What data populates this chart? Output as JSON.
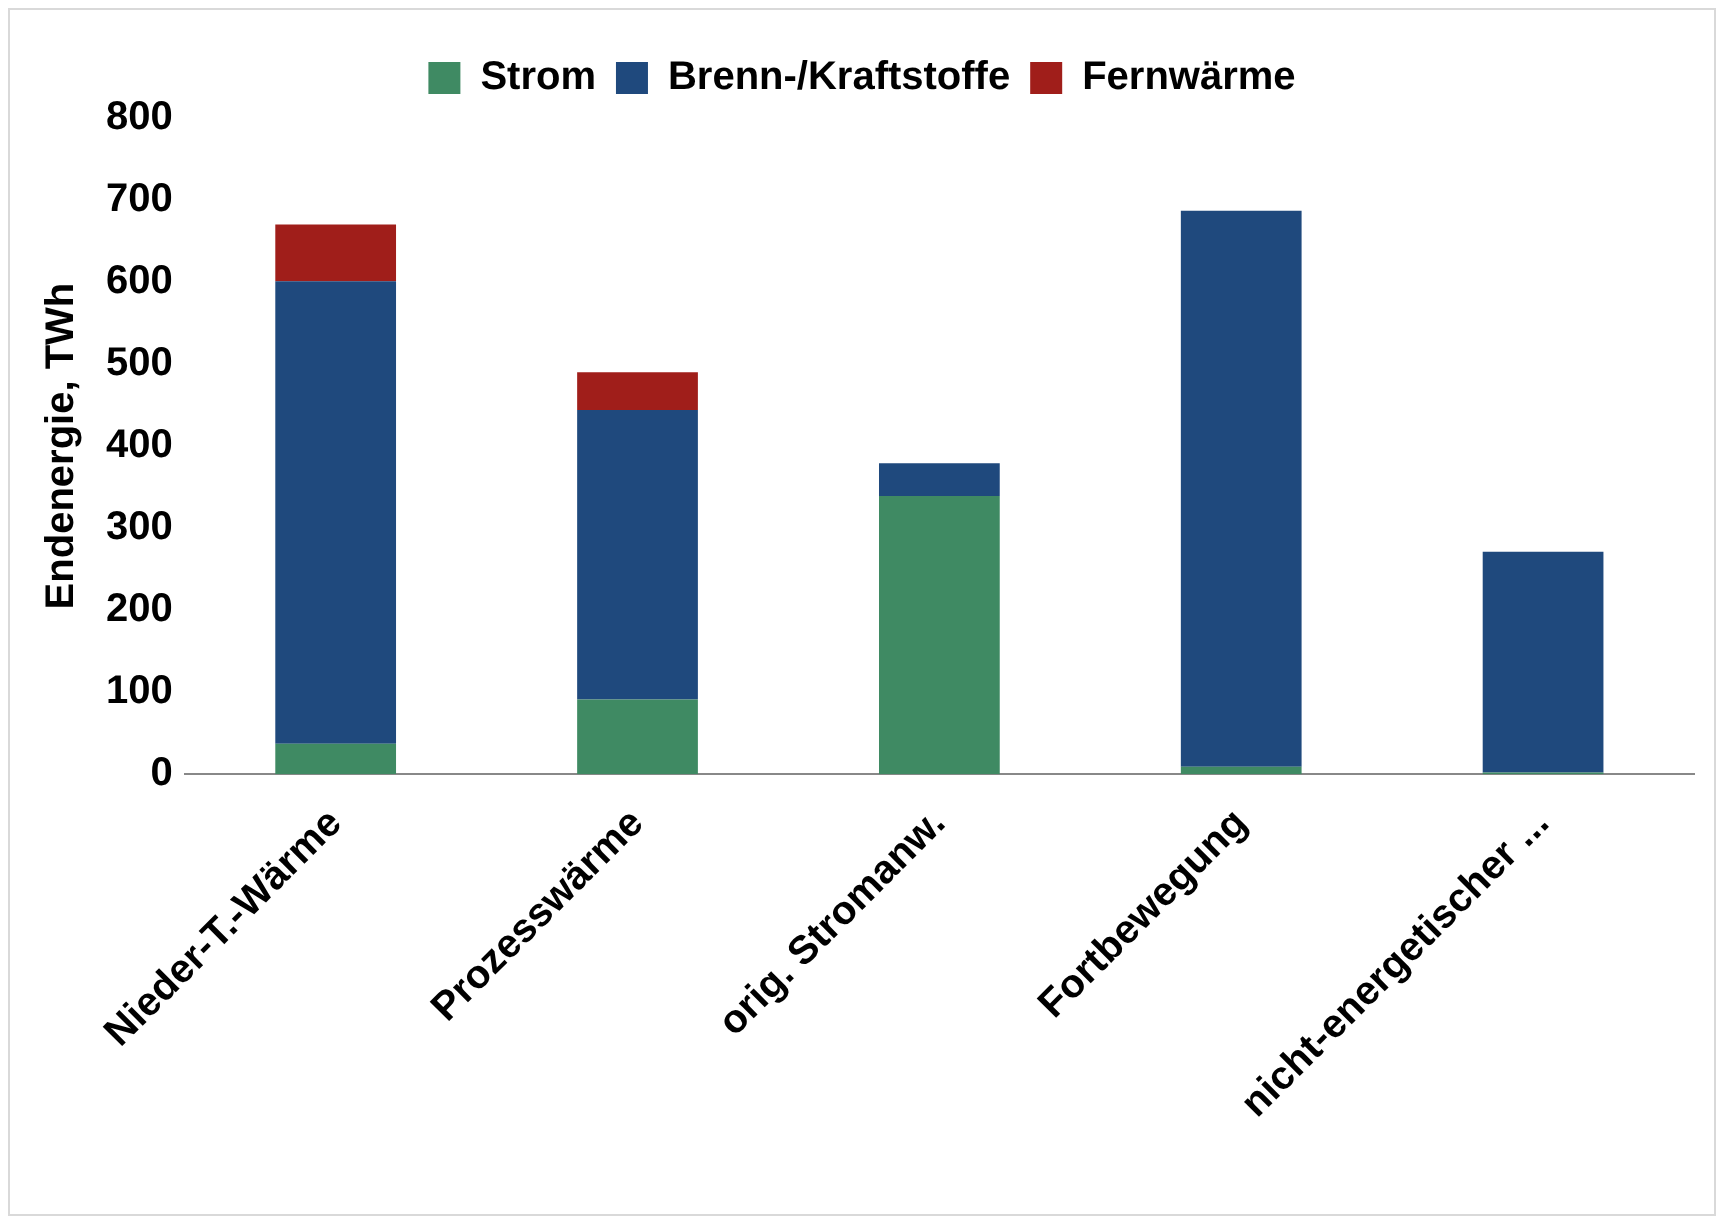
{
  "chart_data": {
    "type": "bar",
    "stacked": true,
    "ylabel": "Endenergie, TWh",
    "categories": [
      "Nieder-T.-Wärme",
      "Prozesswärme",
      "orig. Stromanw.",
      "Fortbewegung",
      "nicht-energetischer ..."
    ],
    "series": [
      {
        "name": "Strom",
        "color": "#3f8a63",
        "values": [
          37,
          91,
          339,
          9,
          2
        ]
      },
      {
        "name": "Brenn-/Kraftstoffe",
        "color": "#1f497d",
        "values": [
          564,
          353,
          40,
          678,
          269
        ]
      },
      {
        "name": "Fernwärme",
        "color": "#a01e1a",
        "values": [
          69,
          46,
          null,
          null,
          null
        ]
      }
    ],
    "ylim": [
      0,
      800
    ],
    "yticks": [
      0,
      100,
      200,
      300,
      400,
      500,
      600,
      700,
      800
    ],
    "grid": false,
    "legend": "top"
  }
}
